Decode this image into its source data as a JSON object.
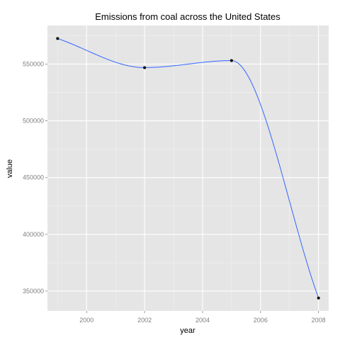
{
  "chart_data": {
    "type": "line",
    "title": "Emissions from coal across the United States",
    "xlabel": "year",
    "ylabel": "value",
    "x_ticks": [
      "2000",
      "2002",
      "2004",
      "2006",
      "2008"
    ],
    "y_ticks": [
      "350000",
      "400000",
      "450000",
      "500000",
      "550000"
    ],
    "xlim": [
      1998.65,
      2008.35
    ],
    "ylim": [
      332500,
      584000
    ],
    "grid": true,
    "legend": "none",
    "series": [
      {
        "x": [
          1999,
          2002,
          2005,
          2008
        ],
        "values": [
          572500,
          546900,
          553100,
          343900
        ]
      }
    ],
    "colors": {
      "panel": "#e5e5e5",
      "grid_major": "#ffffff",
      "grid_minor": "#f2f2f2",
      "smooth_line": "#3366ff",
      "points": "#000000"
    }
  }
}
